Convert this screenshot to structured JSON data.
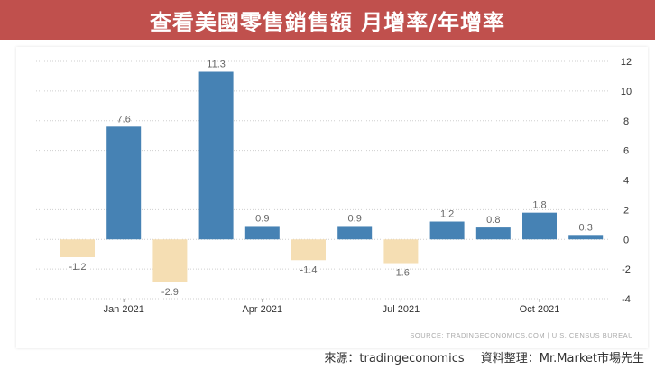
{
  "header": {
    "title": "查看美國零售銷售額 月增率/年增率"
  },
  "footer": {
    "source_label": "來源：tradingeconomics",
    "arranged_by": "資料整理：Mr.Market市場先生"
  },
  "colors": {
    "banner": "#c0504d",
    "positive_bar": "#4682b4",
    "negative_bar": "#f5deb3"
  },
  "chart_data": {
    "type": "bar",
    "categories": [
      "Dec 2020",
      "Jan 2021",
      "Feb 2021",
      "Mar 2021",
      "Apr 2021",
      "May 2021",
      "Jun 2021",
      "Jul 2021",
      "Aug 2021",
      "Sep 2021",
      "Oct 2021",
      "Nov 2021"
    ],
    "values": [
      -1.2,
      7.6,
      -2.9,
      11.3,
      0.9,
      -1.4,
      0.9,
      -1.6,
      1.2,
      0.8,
      1.8,
      0.3
    ],
    "value_labels": [
      "-1.2",
      "7.6",
      "-2.9",
      "11.3",
      "0.9",
      "-1.4",
      "0.9",
      "-1.6",
      "1.2",
      "0.8",
      "1.8",
      "0.3"
    ],
    "x_tick_labels": [
      "Jan 2021",
      "Apr 2021",
      "Jul 2021",
      "Oct 2021"
    ],
    "x_tick_categories": [
      "Jan 2021",
      "Apr 2021",
      "Jul 2021",
      "Oct 2021"
    ],
    "y_ticks": [
      12,
      10,
      8,
      6,
      4,
      2,
      0,
      -2,
      -4
    ],
    "ylim": [
      -4,
      12
    ],
    "y_axis_side": "right",
    "grid": true,
    "source_note": "SOURCE: TRADINGECONOMICS.COM  |  U.S. CENSUS BUREAU"
  }
}
